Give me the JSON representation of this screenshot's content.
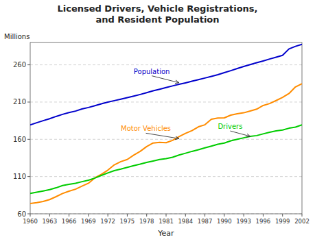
{
  "chart_data": {
    "type": "line",
    "title": "Licensed Drivers, Vehicle Registrations,\nand Resident Population",
    "x_label": "Year",
    "y_label": "Millions",
    "xlim": [
      1960,
      2002
    ],
    "ylim": [
      60,
      290
    ],
    "xticks": [
      1960,
      1963,
      1966,
      1969,
      1972,
      1975,
      1978,
      1981,
      1984,
      1987,
      1990,
      1993,
      1996,
      1999,
      2002
    ],
    "yticks": [
      60,
      110,
      160,
      210,
      260
    ],
    "grid": true,
    "x": [
      1960,
      1961,
      1962,
      1963,
      1964,
      1965,
      1966,
      1967,
      1968,
      1969,
      1970,
      1971,
      1972,
      1973,
      1974,
      1975,
      1976,
      1977,
      1978,
      1979,
      1980,
      1981,
      1982,
      1983,
      1984,
      1985,
      1986,
      1987,
      1988,
      1989,
      1990,
      1991,
      1992,
      1993,
      1994,
      1995,
      1996,
      1997,
      1998,
      1999,
      2000,
      2001,
      2002
    ],
    "series": [
      {
        "color": "#0000CC",
        "values": [
          179.3,
          182.2,
          185.0,
          187.7,
          190.7,
          193.5,
          195.9,
          197.9,
          200.7,
          202.7,
          205.1,
          207.7,
          209.9,
          211.9,
          213.9,
          215.9,
          218.0,
          220.2,
          222.6,
          225.1,
          227.2,
          229.5,
          231.7,
          233.8,
          235.8,
          238.0,
          240.1,
          242.3,
          244.5,
          246.8,
          249.5,
          252.2,
          255.0,
          257.8,
          260.3,
          262.8,
          265.2,
          267.8,
          270.2,
          272.7,
          281.4,
          284.8,
          287.6
        ]
      },
      {
        "color": "#FF8C00",
        "values": [
          73.9,
          75.0,
          76.6,
          79.1,
          83.0,
          87.2,
          90.4,
          93.0,
          97.1,
          101.0,
          108.4,
          113.0,
          118.6,
          125.7,
          130.0,
          132.9,
          138.8,
          143.8,
          150.3,
          155.0,
          155.8,
          155.4,
          158.5,
          163.7,
          168.0,
          171.7,
          176.8,
          179.5,
          187.0,
          188.6,
          188.8,
          192.5,
          194.4,
          195.6,
          198.0,
          200.5,
          205.4,
          208.0,
          212.0,
          216.2,
          221.5,
          230.4,
          234.6
        ]
      },
      {
        "color": "#00CC00",
        "values": [
          87.3,
          88.9,
          90.6,
          92.4,
          94.9,
          98.0,
          99.6,
          101.0,
          103.1,
          105.1,
          108.0,
          111.5,
          114.8,
          118.0,
          120.0,
          122.4,
          124.7,
          126.7,
          129.0,
          130.9,
          132.9,
          134.0,
          135.9,
          138.9,
          141.3,
          143.8,
          146.0,
          148.5,
          150.9,
          153.4,
          155.0,
          158.0,
          160.0,
          162.0,
          163.9,
          165.0,
          167.3,
          169.5,
          171.3,
          172.5,
          174.9,
          176.4,
          179.5
        ]
      }
    ],
    "annotations": [
      {
        "text": "Population",
        "x": 1983,
        "y": 236,
        "text_x": 1976,
        "text_y": 248,
        "color": "#0000CC"
      },
      {
        "text": "Motor Vehicles",
        "x": 1983,
        "y": 161,
        "text_x": 1974,
        "text_y": 171,
        "color": "#FF8C00"
      },
      {
        "text": "Drivers",
        "x": 1994,
        "y": 164,
        "text_x": 1989,
        "text_y": 174,
        "color": "#00CC00"
      }
    ]
  }
}
